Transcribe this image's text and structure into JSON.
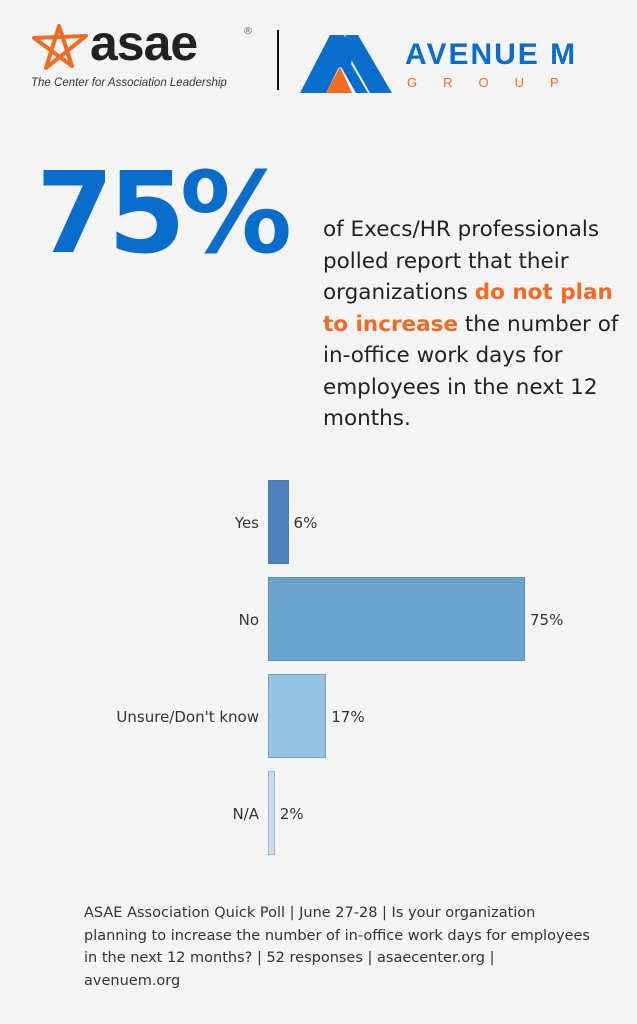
{
  "header": {
    "asae_logo": {
      "wordmark": "asae",
      "registered": "®",
      "tagline": "The Center for Association Leadership",
      "star_color": "#f26b22"
    },
    "avenue_m_logo": {
      "name": "AVENUE M",
      "sub": "GROUP",
      "primary_color": "#0a6ccb",
      "accent_color": "#f26b22"
    }
  },
  "headline": {
    "stat": "75%",
    "text_before": "of Execs/HR professionals polled report that their organizations ",
    "highlight": "do not plan to increase",
    "text_after": " the number of in-office work days for employees in the next 12 months."
  },
  "colors": {
    "stat_blue": "#0a6ccb",
    "highlight_orange": "#f26b22",
    "background": "#f4f4f4"
  },
  "chart_data": {
    "type": "bar",
    "orientation": "horizontal",
    "title": "",
    "xlabel": "",
    "ylabel": "",
    "categories": [
      "Yes",
      "No",
      "Unsure/Don't know",
      "N/A"
    ],
    "values": [
      6,
      75,
      17,
      2
    ],
    "value_labels": [
      "6%",
      "75%",
      "17%",
      "2%"
    ],
    "bar_colors": [
      "#4f81bd",
      "#6ba3cd",
      "#94c2e0",
      "#c9dcee"
    ],
    "xlim": [
      0,
      75
    ],
    "grid": false,
    "legend": "none",
    "units": "percent of respondents"
  },
  "footer": {
    "text": "ASAE Association Quick Poll | June 27-28 | Is your organization planning to increase the number of in-office work days for employees in the next 12 months? | 52 responses | asaecenter.org | avenuem.org"
  }
}
